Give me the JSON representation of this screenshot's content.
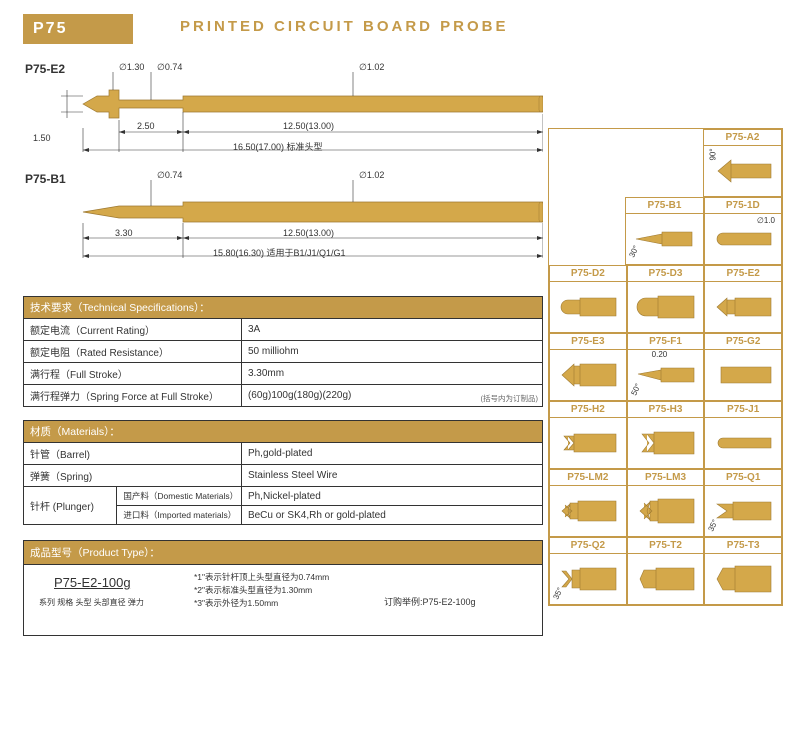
{
  "header": {
    "badge": "P75",
    "title": "PRINTED CIRCUIT BOARD  PROBE"
  },
  "colors": {
    "gold": "#c49a49",
    "gold_dark": "#9e7a32",
    "probe_fill": "#d4a84a",
    "probe_stroke": "#9e7a32",
    "line": "#333333",
    "white": "#ffffff"
  },
  "diagrams": {
    "p1": {
      "label": "P75-E2",
      "d130": "∅1.30",
      "d074": "∅0.74",
      "d102": "∅1.02",
      "h150": "1.50",
      "l250": "2.50",
      "l1250": "12.50(13.00)",
      "total": "16.50(17.00) 标准头型"
    },
    "p2": {
      "label": "P75-B1",
      "d074": "∅0.74",
      "d102": "∅1.02",
      "l330": "3.30",
      "l1250": "12.50(13.00)",
      "total": "15.80(16.30) 适用于B1/J1/Q1/G1"
    }
  },
  "tech": {
    "header": "技术要求（Technical Specifications）：",
    "rows": [
      {
        "k": "额定电流（Current Rating）",
        "v": "3A"
      },
      {
        "k": "额定电阻（Rated Resistance）",
        "v": "50 milliohm"
      },
      {
        "k": "满行程（Full Stroke）",
        "v": "3.30mm"
      },
      {
        "k": "满行程弹力（Spring Force at Full Stroke）",
        "v": "(60g)100g(180g)(220g)"
      }
    ],
    "footnote": "(括号内为订制品)"
  },
  "mat": {
    "header": "材质（Materials）：",
    "barrel_k": "针管（Barrel)",
    "barrel_v": "Ph,gold-plated",
    "spring_k": "弹簧（Spring)",
    "spring_v": "Stainless Steel Wire",
    "plunger_k": "针杆 (Plunger)",
    "dom_k": "国产料（Domestic Materials）",
    "dom_v": "Ph,Nickel-plated",
    "imp_k": "进口料（Imported materials）",
    "imp_v": "BeCu or SK4,Rh or gold-plated"
  },
  "prod": {
    "header": "成品型号（Product Type）：",
    "code": "P75-E2-100g",
    "tags": "系列 规格 头型 头部直径 弹力",
    "n1": "*1\"表示针杆顶上头型直径为0.74mm",
    "n2": "*2\"表示标准头型直径为1.30mm",
    "n3": "*3\"表示外径为1.50mm",
    "example": "订购举例:P75-E2-100g"
  },
  "tips": {
    "r0": [
      {
        "name": "P75-A2",
        "shape": "a2",
        "ang": "90°"
      }
    ],
    "r1": [
      {
        "name": "P75-B1",
        "shape": "b1",
        "ang": "30°"
      },
      {
        "name": "P75-1D",
        "shape": "1d",
        "note": "∅1.0"
      }
    ],
    "r2": [
      {
        "name": "P75-D2",
        "shape": "d2"
      },
      {
        "name": "P75-D3",
        "shape": "d3"
      },
      {
        "name": "P75-E2",
        "shape": "e2"
      }
    ],
    "r3": [
      {
        "name": "P75-E3",
        "shape": "e3"
      },
      {
        "name": "P75-F1",
        "shape": "f1",
        "ang": "50°",
        "note": "0.20"
      },
      {
        "name": "P75-G2",
        "shape": "g2"
      }
    ],
    "r4": [
      {
        "name": "P75-H2",
        "shape": "h2"
      },
      {
        "name": "P75-H3",
        "shape": "h3"
      },
      {
        "name": "P75-J1",
        "shape": "j1"
      }
    ],
    "r5": [
      {
        "name": "P75-LM2",
        "shape": "lm2"
      },
      {
        "name": "P75-LM3",
        "shape": "lm3"
      },
      {
        "name": "P75-Q1",
        "shape": "q1",
        "ang": "35°"
      }
    ],
    "r6": [
      {
        "name": "P75-Q2",
        "shape": "q2",
        "ang": "35°"
      },
      {
        "name": "P75-T2",
        "shape": "t2"
      },
      {
        "name": "P75-T3",
        "shape": "t3"
      }
    ]
  }
}
